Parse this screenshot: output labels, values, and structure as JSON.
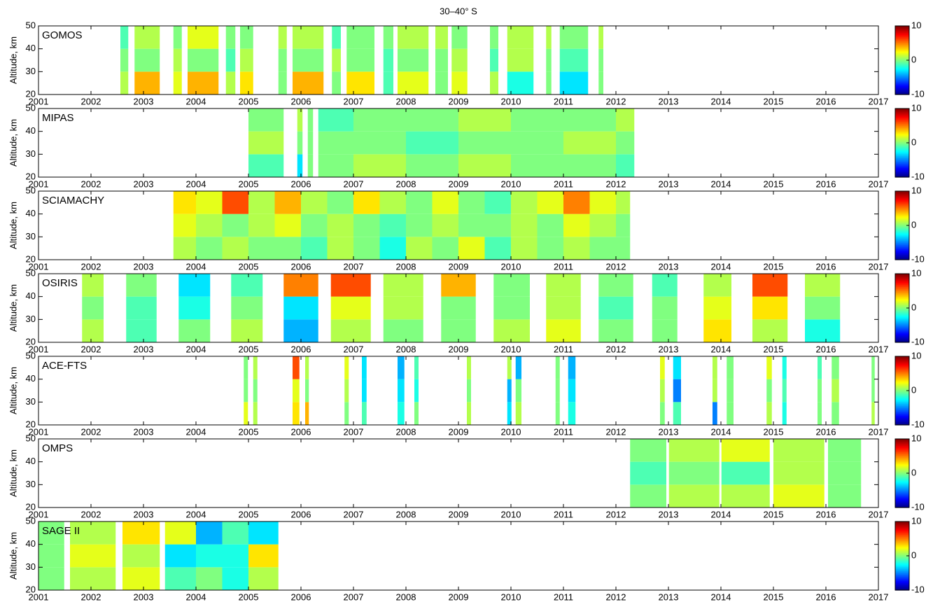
{
  "title": "30–40° S",
  "chart_data": [
    {
      "type": "heatmap",
      "label": "GOMOS",
      "ylabel": "Altitude, km",
      "xlim": [
        2001,
        2017
      ],
      "xticks": [
        2001,
        2002,
        2003,
        2004,
        2005,
        2006,
        2007,
        2008,
        2009,
        2010,
        2011,
        2012,
        2013,
        2014,
        2015,
        2016,
        2017
      ],
      "ylim": [
        20,
        50
      ],
      "yticks": [
        20,
        30,
        40,
        50
      ],
      "clim": [
        -10,
        10
      ],
      "cticks": [
        -10,
        0,
        10
      ],
      "xbins": [
        2002.56,
        2002.71,
        2002.83,
        2003.31,
        2003.57,
        2003.73,
        2003.84,
        2004.43,
        2004.57,
        2004.75,
        2004.84,
        2005.09,
        2005.57,
        2005.73,
        2005.84,
        2006.43,
        2006.59,
        2006.76,
        2006.87,
        2007.4,
        2007.57,
        2007.76,
        2007.84,
        2008.43,
        2008.56,
        2008.8,
        2008.87,
        2009.17,
        2009.6,
        2009.76,
        2009.93,
        2010.43,
        2010.67,
        2010.77,
        2010.93,
        2011.47,
        2011.67,
        2011.76
      ],
      "ybins": [
        20,
        30,
        40,
        50
      ],
      "values": [
        [
          1,
          null,
          4,
          null,
          2,
          null,
          4,
          null,
          1,
          null,
          3,
          null,
          0,
          null,
          4,
          null,
          0,
          null,
          3,
          null,
          -1,
          null,
          2,
          null,
          0,
          null,
          2,
          null,
          1,
          null,
          -2,
          null,
          0,
          null,
          -3,
          null,
          0
        ],
        [
          0,
          null,
          0,
          null,
          1,
          null,
          0,
          null,
          -1,
          null,
          1,
          null,
          0,
          null,
          0,
          null,
          1,
          null,
          0,
          null,
          -1,
          null,
          0,
          null,
          0,
          null,
          1,
          null,
          -1,
          null,
          1,
          null,
          0,
          null,
          -1,
          null,
          0
        ],
        [
          -1,
          null,
          1,
          null,
          0,
          null,
          2,
          null,
          0,
          null,
          0,
          null,
          1,
          null,
          1,
          null,
          -1,
          null,
          0,
          null,
          0,
          null,
          1,
          null,
          1,
          null,
          0,
          null,
          0,
          null,
          1,
          null,
          1,
          null,
          0,
          null,
          1
        ]
      ]
    },
    {
      "type": "heatmap",
      "label": "MIPAS",
      "ylabel": "Altitude, km",
      "xlim": [
        2001,
        2017
      ],
      "xticks": [
        2001,
        2002,
        2003,
        2004,
        2005,
        2006,
        2007,
        2008,
        2009,
        2010,
        2011,
        2012,
        2013,
        2014,
        2015,
        2016,
        2017
      ],
      "ylim": [
        20,
        50
      ],
      "yticks": [
        20,
        30,
        40,
        50
      ],
      "clim": [
        -10,
        10
      ],
      "cticks": [
        -10,
        0,
        10
      ],
      "xbins": [
        2005,
        2005.67,
        2005.93,
        2006.03,
        2006.13,
        2006.23,
        2006.33,
        2007,
        2008,
        2009,
        2010,
        2011,
        2012,
        2012.35
      ],
      "ybins": [
        20,
        30,
        40,
        50
      ],
      "values": [
        [
          -1,
          null,
          -3,
          null,
          0,
          null,
          0,
          1,
          0,
          1,
          0,
          0,
          -1
        ],
        [
          1,
          null,
          0,
          null,
          0,
          null,
          0,
          0,
          -1,
          0,
          0,
          1,
          0
        ],
        [
          0,
          null,
          1,
          null,
          0,
          null,
          -1,
          0,
          0,
          1,
          0,
          0,
          1
        ]
      ]
    },
    {
      "type": "heatmap",
      "label": "SCIAMACHY",
      "ylabel": "Altitude, km",
      "xlim": [
        2001,
        2017
      ],
      "xticks": [
        2001,
        2002,
        2003,
        2004,
        2005,
        2006,
        2007,
        2008,
        2009,
        2010,
        2011,
        2012,
        2013,
        2014,
        2015,
        2016,
        2017
      ],
      "ylim": [
        20,
        50
      ],
      "yticks": [
        20,
        30,
        40,
        50
      ],
      "clim": [
        -10,
        10
      ],
      "cticks": [
        -10,
        0,
        10
      ],
      "xbins": [
        2003.57,
        2004,
        2004.5,
        2005,
        2005.5,
        2006,
        2006.5,
        2007,
        2007.5,
        2008,
        2008.5,
        2009,
        2009.5,
        2010,
        2010.5,
        2011,
        2011.5,
        2012,
        2012.27
      ],
      "ybins": [
        20,
        30,
        40,
        50
      ],
      "values": [
        [
          1,
          0,
          1,
          0,
          0,
          -1,
          1,
          0,
          -2,
          1,
          0,
          2,
          -1,
          1,
          0,
          1,
          0,
          0
        ],
        [
          2,
          1,
          0,
          1,
          2,
          0,
          1,
          0,
          -1,
          0,
          1,
          0,
          0,
          1,
          0,
          2,
          1,
          0
        ],
        [
          3,
          2,
          6,
          1,
          4,
          1,
          0,
          3,
          1,
          0,
          2,
          0,
          -1,
          1,
          2,
          5,
          2,
          1
        ]
      ]
    },
    {
      "type": "heatmap",
      "label": "OSIRIS",
      "ylabel": "Altitude, km",
      "xlim": [
        2001,
        2017
      ],
      "xticks": [
        2001,
        2002,
        2003,
        2004,
        2005,
        2006,
        2007,
        2008,
        2009,
        2010,
        2011,
        2012,
        2013,
        2014,
        2015,
        2016,
        2017
      ],
      "ylim": [
        20,
        50
      ],
      "yticks": [
        20,
        30,
        40,
        50
      ],
      "clim": [
        -10,
        10
      ],
      "cticks": [
        -10,
        0,
        10
      ],
      "xbins": [
        2001.83,
        2002.24,
        2002.67,
        2003.25,
        2003.67,
        2004.27,
        2004.67,
        2005.27,
        2005.67,
        2006.33,
        2006.57,
        2007.33,
        2007.57,
        2008.33,
        2008.67,
        2009.33,
        2009.67,
        2010.36,
        2010.67,
        2011.33,
        2011.67,
        2012.33,
        2012.69,
        2013.17,
        2013.67,
        2014.2,
        2014.6,
        2015.27,
        2015.6,
        2016.27
      ],
      "ybins": [
        20,
        30,
        40,
        50
      ],
      "values": [
        [
          1,
          null,
          -1,
          null,
          0,
          null,
          1,
          null,
          -4,
          null,
          1,
          null,
          0,
          null,
          0,
          null,
          1,
          null,
          2,
          null,
          0,
          null,
          0,
          null,
          3,
          null,
          1,
          null,
          -2
        ],
        [
          0,
          null,
          -1,
          null,
          -2,
          null,
          0,
          null,
          -3,
          null,
          2,
          null,
          1,
          null,
          0,
          null,
          0,
          null,
          1,
          null,
          -1,
          null,
          0,
          null,
          2,
          null,
          3,
          null,
          0
        ],
        [
          1,
          null,
          0,
          null,
          -3,
          null,
          -1,
          null,
          5,
          null,
          6,
          null,
          1,
          null,
          4,
          null,
          0,
          null,
          1,
          null,
          0,
          null,
          -1,
          null,
          1,
          null,
          6,
          null,
          1
        ]
      ]
    },
    {
      "type": "heatmap",
      "label": "ACE-FTS",
      "ylabel": "Altitude, km",
      "xlim": [
        2001,
        2017
      ],
      "xticks": [
        2001,
        2002,
        2003,
        2004,
        2005,
        2006,
        2007,
        2008,
        2009,
        2010,
        2011,
        2012,
        2013,
        2014,
        2015,
        2016,
        2017
      ],
      "ylim": [
        20,
        50
      ],
      "yticks": [
        20,
        30,
        40,
        50
      ],
      "clim": [
        -10,
        10
      ],
      "cticks": [
        -10,
        0,
        10
      ],
      "xbins": [
        2004.91,
        2004.99,
        2005.09,
        2005.17,
        2005.84,
        2005.97,
        2006.08,
        2006.15,
        2006.83,
        2006.91,
        2007.16,
        2007.25,
        2007.84,
        2007.97,
        2008.16,
        2008.24,
        2009.16,
        2009.24,
        2009.93,
        2010.01,
        2010.09,
        2010.2,
        2010.85,
        2010.93,
        2011.09,
        2011.23,
        2012.84,
        2012.93,
        2013.09,
        2013.24,
        2013.84,
        2013.93,
        2014.11,
        2014.24,
        2014.87,
        2014.97,
        2015.17,
        2015.25,
        2015.84,
        2015.92,
        2016.11,
        2016.25,
        2016.87,
        2016.93
      ],
      "ybins": [
        20,
        30,
        40,
        50
      ],
      "values": [
        [
          2,
          null,
          1,
          null,
          3,
          null,
          4,
          null,
          0,
          null,
          -1,
          null,
          -2,
          null,
          0,
          null,
          1,
          null,
          -3,
          null,
          1,
          null,
          0,
          null,
          -2,
          null,
          0,
          null,
          -1,
          null,
          -5,
          null,
          0,
          null,
          1,
          null,
          -2,
          null,
          0,
          null,
          0,
          null,
          1
        ],
        [
          0,
          null,
          0,
          null,
          2,
          null,
          0,
          null,
          1,
          null,
          -3,
          null,
          -3,
          null,
          -2,
          null,
          0,
          null,
          -4,
          null,
          0,
          null,
          0,
          null,
          -3,
          null,
          1,
          null,
          -5,
          null,
          1,
          null,
          0,
          null,
          0,
          null,
          -1,
          null,
          0,
          null,
          1,
          null,
          0
        ],
        [
          0,
          null,
          1,
          null,
          6,
          null,
          1,
          null,
          2,
          null,
          -3,
          null,
          -4,
          null,
          -1,
          null,
          1,
          null,
          1,
          null,
          -4,
          null,
          0,
          null,
          -4,
          null,
          2,
          null,
          -3,
          null,
          1,
          null,
          0,
          null,
          2,
          null,
          -2,
          null,
          -1,
          null,
          0,
          null,
          0
        ]
      ]
    },
    {
      "type": "heatmap",
      "label": "OMPS",
      "ylabel": "Altitude, km",
      "xlim": [
        2001,
        2017
      ],
      "xticks": [
        2001,
        2002,
        2003,
        2004,
        2005,
        2006,
        2007,
        2008,
        2009,
        2010,
        2011,
        2012,
        2013,
        2014,
        2015,
        2016,
        2017
      ],
      "ylim": [
        20,
        50
      ],
      "yticks": [
        20,
        30,
        40,
        50
      ],
      "clim": [
        -10,
        10
      ],
      "cticks": [
        -10,
        0,
        10
      ],
      "xbins": [
        2012.27,
        2012.96,
        2013.01,
        2013.97,
        2014.01,
        2014.93,
        2015,
        2015.97,
        2016.04,
        2016.67
      ],
      "ybins": [
        20,
        30,
        40,
        50
      ],
      "values": [
        [
          0,
          null,
          1,
          null,
          1,
          null,
          2,
          null,
          0
        ],
        [
          -1,
          null,
          0,
          null,
          -1,
          null,
          1,
          null,
          0
        ],
        [
          0,
          null,
          1,
          null,
          2,
          null,
          1,
          null,
          0
        ]
      ]
    },
    {
      "type": "heatmap",
      "label": "SAGE II",
      "ylabel": "Altitude, km",
      "xlim": [
        2001,
        2017
      ],
      "xticks": [
        2001,
        2002,
        2003,
        2004,
        2005,
        2006,
        2007,
        2008,
        2009,
        2010,
        2011,
        2012,
        2013,
        2014,
        2015,
        2016,
        2017
      ],
      "ylim": [
        20,
        50
      ],
      "yticks": [
        20,
        30,
        40,
        50
      ],
      "clim": [
        -10,
        10
      ],
      "cticks": [
        -10,
        0,
        10
      ],
      "xbins": [
        2001,
        2001.49,
        2001.6,
        2002.47,
        2002.6,
        2003.31,
        2003.41,
        2004,
        2004.5,
        2005,
        2005.57
      ],
      "ybins": [
        20,
        30,
        40,
        50
      ],
      "values": [
        [
          0,
          null,
          1,
          null,
          2,
          null,
          -1,
          0,
          -2,
          1
        ],
        [
          0,
          null,
          2,
          null,
          1,
          null,
          -3,
          -2,
          -2,
          3
        ],
        [
          0,
          null,
          1,
          null,
          3,
          null,
          2,
          -4,
          -1,
          -3
        ]
      ]
    }
  ]
}
